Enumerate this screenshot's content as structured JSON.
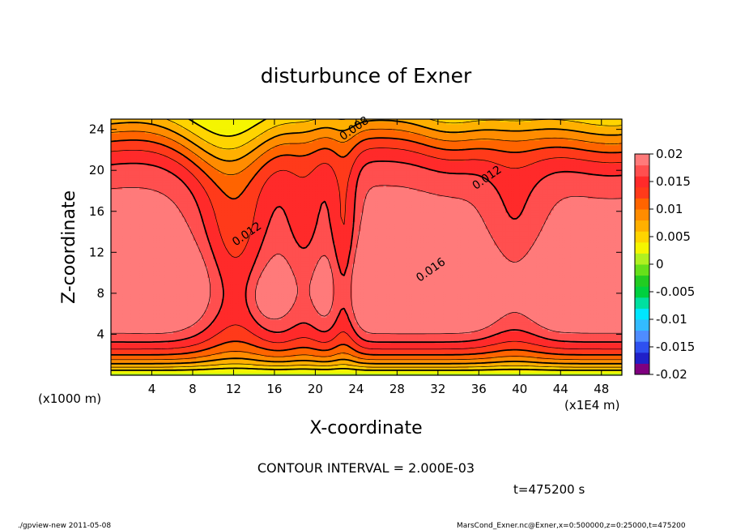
{
  "chart_data": {
    "type": "heatmap",
    "title": "disturbunce of Exner",
    "xlabel": "X-coordinate",
    "ylabel": "Z-coordinate",
    "x_unit_left": "(x1000 m)",
    "x_unit_right": "(x1E4 m)",
    "xlim": [
      0,
      50
    ],
    "ylim": [
      0,
      25
    ],
    "x_ticks": [
      4,
      8,
      12,
      16,
      20,
      24,
      28,
      32,
      36,
      40,
      44,
      48
    ],
    "y_ticks": [
      4,
      8,
      12,
      16,
      20,
      24
    ],
    "contour_interval_text": "CONTOUR INTERVAL = 2.000E-03",
    "time_text": "t=475200 s",
    "contour_labels": [
      {
        "text": "0.008",
        "x": 24,
        "y": 23.8
      },
      {
        "text": "0.012",
        "x": 37,
        "y": 19
      },
      {
        "text": "0.012",
        "x": 13.5,
        "y": 13.5
      },
      {
        "text": "0.016",
        "x": 31.5,
        "y": 10
      }
    ],
    "colorbar": {
      "min": -0.02,
      "max": 0.02,
      "tick_labels": [
        "0.02",
        "0.015",
        "0.01",
        "0.005",
        "0",
        "-0.005",
        "-0.01",
        "-0.015",
        "-0.02"
      ],
      "colors": [
        "#7f007f",
        "#2020c8",
        "#2e50f0",
        "#4f8cff",
        "#33bbff",
        "#00e6ff",
        "#00e0a0",
        "#00d040",
        "#22cc22",
        "#66e01a",
        "#b0f020",
        "#f5f500",
        "#ffd400",
        "#ffb000",
        "#ff8c00",
        "#ff6400",
        "#ff3a1a",
        "#ff2a2a",
        "#ff4f4f",
        "#ff7a7a"
      ]
    }
  },
  "footer": {
    "left": "./gpview-new  2011-05-08",
    "right": "MarsCond_Exner.nc@Exner,x=0:500000,z=0:25000,t=475200"
  }
}
